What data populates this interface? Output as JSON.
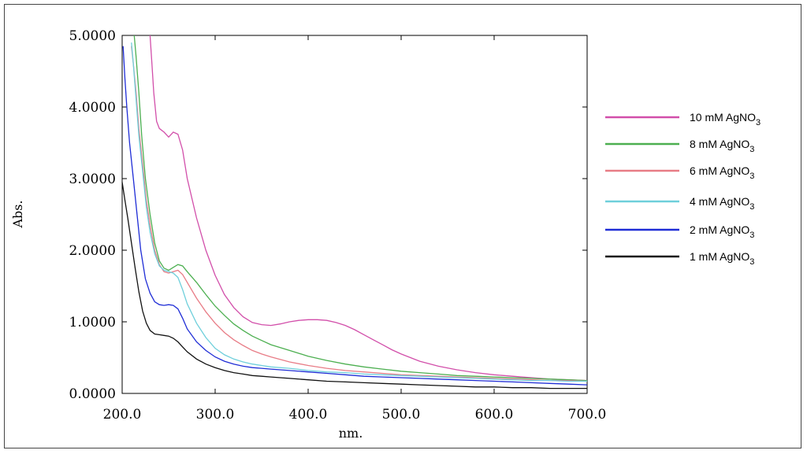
{
  "chart_data": {
    "type": "line",
    "title": "",
    "xlabel": "nm.",
    "ylabel": "Abs.",
    "xlim": [
      200,
      700
    ],
    "ylim": [
      0,
      5
    ],
    "xticks": [
      "200.0",
      "300.0",
      "400.0",
      "500.0",
      "600.0",
      "700.0"
    ],
    "yticks": [
      "0.0000",
      "1.0000",
      "2.0000",
      "3.0000",
      "4.0000",
      "5.0000"
    ],
    "xtick_values": [
      200,
      300,
      400,
      500,
      600,
      700
    ],
    "ytick_values": [
      0,
      1,
      2,
      3,
      4,
      5
    ],
    "grid": false,
    "legend_position": "right",
    "series": [
      {
        "name": "10 mM AgNO3",
        "label_base": "10 mM AgNO",
        "label_sub": "3",
        "color": "#d24faa",
        "points": [
          [
            230,
            5.0
          ],
          [
            232,
            4.6
          ],
          [
            234,
            4.2
          ],
          [
            237,
            3.8
          ],
          [
            240,
            3.7
          ],
          [
            245,
            3.65
          ],
          [
            250,
            3.58
          ],
          [
            255,
            3.65
          ],
          [
            260,
            3.62
          ],
          [
            265,
            3.4
          ],
          [
            270,
            3.0
          ],
          [
            280,
            2.45
          ],
          [
            290,
            2.0
          ],
          [
            300,
            1.65
          ],
          [
            310,
            1.38
          ],
          [
            320,
            1.2
          ],
          [
            330,
            1.07
          ],
          [
            340,
            0.99
          ],
          [
            350,
            0.96
          ],
          [
            360,
            0.95
          ],
          [
            370,
            0.97
          ],
          [
            380,
            1.0
          ],
          [
            390,
            1.02
          ],
          [
            400,
            1.03
          ],
          [
            410,
            1.03
          ],
          [
            420,
            1.02
          ],
          [
            430,
            0.99
          ],
          [
            440,
            0.95
          ],
          [
            450,
            0.89
          ],
          [
            460,
            0.82
          ],
          [
            470,
            0.75
          ],
          [
            480,
            0.68
          ],
          [
            490,
            0.61
          ],
          [
            500,
            0.55
          ],
          [
            520,
            0.45
          ],
          [
            540,
            0.38
          ],
          [
            560,
            0.33
          ],
          [
            580,
            0.29
          ],
          [
            600,
            0.26
          ],
          [
            620,
            0.24
          ],
          [
            640,
            0.22
          ],
          [
            660,
            0.2
          ],
          [
            680,
            0.19
          ],
          [
            700,
            0.18
          ]
        ]
      },
      {
        "name": "8 mM AgNO3",
        "label_base": "8 mM AgNO",
        "label_sub": "3",
        "color": "#4caf50",
        "points": [
          [
            213,
            5.0
          ],
          [
            215,
            4.7
          ],
          [
            218,
            4.2
          ],
          [
            221,
            3.6
          ],
          [
            225,
            3.0
          ],
          [
            230,
            2.5
          ],
          [
            235,
            2.1
          ],
          [
            240,
            1.85
          ],
          [
            245,
            1.75
          ],
          [
            250,
            1.72
          ],
          [
            255,
            1.76
          ],
          [
            260,
            1.8
          ],
          [
            265,
            1.78
          ],
          [
            270,
            1.7
          ],
          [
            280,
            1.55
          ],
          [
            290,
            1.38
          ],
          [
            300,
            1.22
          ],
          [
            310,
            1.09
          ],
          [
            320,
            0.97
          ],
          [
            330,
            0.88
          ],
          [
            340,
            0.8
          ],
          [
            350,
            0.74
          ],
          [
            360,
            0.68
          ],
          [
            380,
            0.6
          ],
          [
            400,
            0.52
          ],
          [
            420,
            0.46
          ],
          [
            440,
            0.41
          ],
          [
            460,
            0.37
          ],
          [
            480,
            0.34
          ],
          [
            500,
            0.31
          ],
          [
            520,
            0.29
          ],
          [
            540,
            0.27
          ],
          [
            560,
            0.25
          ],
          [
            580,
            0.24
          ],
          [
            600,
            0.23
          ],
          [
            620,
            0.22
          ],
          [
            640,
            0.21
          ],
          [
            660,
            0.2
          ],
          [
            680,
            0.19
          ],
          [
            700,
            0.18
          ]
        ]
      },
      {
        "name": "6 mM AgNO3",
        "label_base": "6 mM AgNO",
        "label_sub": "3",
        "color": "#e87c86",
        "points": [
          [
            210,
            4.85
          ],
          [
            212,
            4.6
          ],
          [
            215,
            4.2
          ],
          [
            218,
            3.7
          ],
          [
            222,
            3.2
          ],
          [
            226,
            2.7
          ],
          [
            230,
            2.35
          ],
          [
            235,
            2.0
          ],
          [
            240,
            1.8
          ],
          [
            245,
            1.7
          ],
          [
            250,
            1.68
          ],
          [
            255,
            1.7
          ],
          [
            260,
            1.72
          ],
          [
            265,
            1.66
          ],
          [
            270,
            1.55
          ],
          [
            280,
            1.33
          ],
          [
            290,
            1.14
          ],
          [
            300,
            0.98
          ],
          [
            310,
            0.85
          ],
          [
            320,
            0.75
          ],
          [
            330,
            0.67
          ],
          [
            340,
            0.6
          ],
          [
            350,
            0.55
          ],
          [
            360,
            0.51
          ],
          [
            380,
            0.44
          ],
          [
            400,
            0.39
          ],
          [
            420,
            0.35
          ],
          [
            440,
            0.32
          ],
          [
            460,
            0.3
          ],
          [
            480,
            0.28
          ],
          [
            500,
            0.26
          ],
          [
            520,
            0.25
          ],
          [
            540,
            0.24
          ],
          [
            560,
            0.23
          ],
          [
            580,
            0.22
          ],
          [
            600,
            0.21
          ],
          [
            620,
            0.2
          ],
          [
            640,
            0.19
          ],
          [
            660,
            0.18
          ],
          [
            680,
            0.18
          ],
          [
            700,
            0.17
          ]
        ]
      },
      {
        "name": "4 mM AgNO3",
        "label_base": "4 mM AgNO",
        "label_sub": "3",
        "color": "#6ecfdb",
        "points": [
          [
            210,
            4.9
          ],
          [
            212,
            4.6
          ],
          [
            215,
            4.1
          ],
          [
            218,
            3.6
          ],
          [
            222,
            3.1
          ],
          [
            226,
            2.6
          ],
          [
            230,
            2.25
          ],
          [
            235,
            1.95
          ],
          [
            240,
            1.78
          ],
          [
            245,
            1.72
          ],
          [
            250,
            1.7
          ],
          [
            255,
            1.68
          ],
          [
            260,
            1.62
          ],
          [
            265,
            1.45
          ],
          [
            270,
            1.25
          ],
          [
            280,
            0.98
          ],
          [
            290,
            0.78
          ],
          [
            300,
            0.63
          ],
          [
            310,
            0.54
          ],
          [
            320,
            0.48
          ],
          [
            330,
            0.44
          ],
          [
            340,
            0.41
          ],
          [
            350,
            0.39
          ],
          [
            360,
            0.37
          ],
          [
            380,
            0.35
          ],
          [
            400,
            0.32
          ],
          [
            420,
            0.3
          ],
          [
            440,
            0.29
          ],
          [
            460,
            0.27
          ],
          [
            480,
            0.26
          ],
          [
            500,
            0.25
          ],
          [
            520,
            0.24
          ],
          [
            540,
            0.23
          ],
          [
            560,
            0.22
          ],
          [
            580,
            0.21
          ],
          [
            600,
            0.2
          ],
          [
            620,
            0.19
          ],
          [
            640,
            0.18
          ],
          [
            660,
            0.18
          ],
          [
            680,
            0.17
          ],
          [
            700,
            0.17
          ]
        ]
      },
      {
        "name": "2 mM AgNO3",
        "label_base": "2 mM AgNO",
        "label_sub": "3",
        "color": "#1f2dd6",
        "points": [
          [
            201,
            4.85
          ],
          [
            203,
            4.4
          ],
          [
            205,
            4.0
          ],
          [
            208,
            3.5
          ],
          [
            212,
            3.0
          ],
          [
            216,
            2.5
          ],
          [
            220,
            2.0
          ],
          [
            225,
            1.6
          ],
          [
            230,
            1.4
          ],
          [
            235,
            1.28
          ],
          [
            240,
            1.24
          ],
          [
            245,
            1.23
          ],
          [
            250,
            1.24
          ],
          [
            255,
            1.23
          ],
          [
            260,
            1.18
          ],
          [
            265,
            1.05
          ],
          [
            270,
            0.9
          ],
          [
            280,
            0.72
          ],
          [
            290,
            0.6
          ],
          [
            300,
            0.51
          ],
          [
            310,
            0.45
          ],
          [
            320,
            0.41
          ],
          [
            330,
            0.38
          ],
          [
            340,
            0.36
          ],
          [
            350,
            0.35
          ],
          [
            360,
            0.34
          ],
          [
            380,
            0.32
          ],
          [
            400,
            0.3
          ],
          [
            420,
            0.28
          ],
          [
            440,
            0.26
          ],
          [
            460,
            0.24
          ],
          [
            480,
            0.23
          ],
          [
            500,
            0.22
          ],
          [
            520,
            0.21
          ],
          [
            540,
            0.2
          ],
          [
            560,
            0.19
          ],
          [
            580,
            0.18
          ],
          [
            600,
            0.17
          ],
          [
            620,
            0.16
          ],
          [
            640,
            0.15
          ],
          [
            660,
            0.14
          ],
          [
            680,
            0.13
          ],
          [
            700,
            0.12
          ]
        ]
      },
      {
        "name": "1 mM AgNO3",
        "label_base": "1 mM AgNO",
        "label_sub": "3",
        "color": "#111111",
        "points": [
          [
            200,
            2.95
          ],
          [
            203,
            2.7
          ],
          [
            206,
            2.45
          ],
          [
            210,
            2.1
          ],
          [
            214,
            1.75
          ],
          [
            218,
            1.42
          ],
          [
            222,
            1.15
          ],
          [
            226,
            0.98
          ],
          [
            230,
            0.88
          ],
          [
            235,
            0.83
          ],
          [
            240,
            0.82
          ],
          [
            245,
            0.81
          ],
          [
            250,
            0.8
          ],
          [
            255,
            0.77
          ],
          [
            260,
            0.72
          ],
          [
            265,
            0.65
          ],
          [
            270,
            0.58
          ],
          [
            280,
            0.48
          ],
          [
            290,
            0.41
          ],
          [
            300,
            0.36
          ],
          [
            310,
            0.32
          ],
          [
            320,
            0.29
          ],
          [
            330,
            0.27
          ],
          [
            340,
            0.25
          ],
          [
            350,
            0.24
          ],
          [
            360,
            0.23
          ],
          [
            380,
            0.21
          ],
          [
            400,
            0.19
          ],
          [
            420,
            0.17
          ],
          [
            440,
            0.16
          ],
          [
            460,
            0.15
          ],
          [
            480,
            0.14
          ],
          [
            500,
            0.13
          ],
          [
            520,
            0.12
          ],
          [
            540,
            0.11
          ],
          [
            560,
            0.1
          ],
          [
            580,
            0.09
          ],
          [
            600,
            0.09
          ],
          [
            620,
            0.08
          ],
          [
            640,
            0.08
          ],
          [
            660,
            0.07
          ],
          [
            680,
            0.07
          ],
          [
            700,
            0.07
          ]
        ]
      }
    ]
  }
}
